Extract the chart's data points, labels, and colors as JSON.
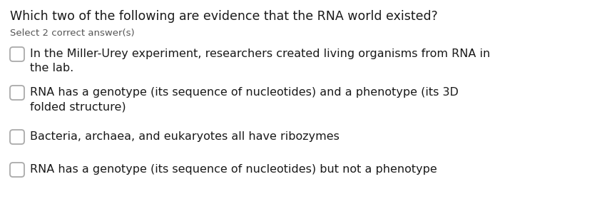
{
  "title": "Which two of the following are evidence that the RNA world existed?",
  "subtitle": "Select 2 correct answer(s)",
  "options": [
    "In the Miller-Urey experiment, researchers created living organisms from RNA in\nthe lab.",
    "RNA has a genotype (its sequence of nucleotides) and a phenotype (its 3D\nfolded structure)",
    "Bacteria, archaea, and eukaryotes all have ribozymes",
    "RNA has a genotype (its sequence of nucleotides) but not a phenotype"
  ],
  "bg_color": "#ffffff",
  "title_color": "#1a1a1a",
  "subtitle_color": "#555555",
  "option_color": "#1a1a1a",
  "checkbox_edge_color": "#aaaaaa",
  "title_fontsize": 12.5,
  "subtitle_fontsize": 9.5,
  "option_fontsize": 11.5
}
